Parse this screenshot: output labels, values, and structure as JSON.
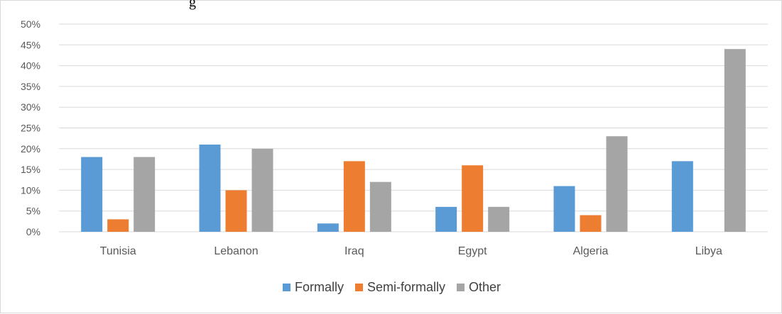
{
  "title_fragment": "g",
  "chart_data": {
    "type": "bar",
    "categories": [
      "Tunisia",
      "Lebanon",
      "Iraq",
      "Egypt",
      "Algeria",
      "Libya"
    ],
    "series": [
      {
        "name": "Formally",
        "color": "#5b9bd5",
        "values": [
          18,
          21,
          2,
          6,
          11,
          17
        ]
      },
      {
        "name": "Semi-formally",
        "color": "#ed7d31",
        "values": [
          3,
          10,
          17,
          16,
          4,
          0
        ]
      },
      {
        "name": "Other",
        "color": "#a5a5a5",
        "values": [
          18,
          20,
          12,
          6,
          23,
          44
        ]
      }
    ],
    "ylim": [
      0,
      50
    ],
    "yticks": [
      "0%",
      "5%",
      "10%",
      "15%",
      "20%",
      "25%",
      "30%",
      "35%",
      "40%",
      "45%",
      "50%"
    ],
    "grid": true,
    "legend_position": "bottom"
  }
}
